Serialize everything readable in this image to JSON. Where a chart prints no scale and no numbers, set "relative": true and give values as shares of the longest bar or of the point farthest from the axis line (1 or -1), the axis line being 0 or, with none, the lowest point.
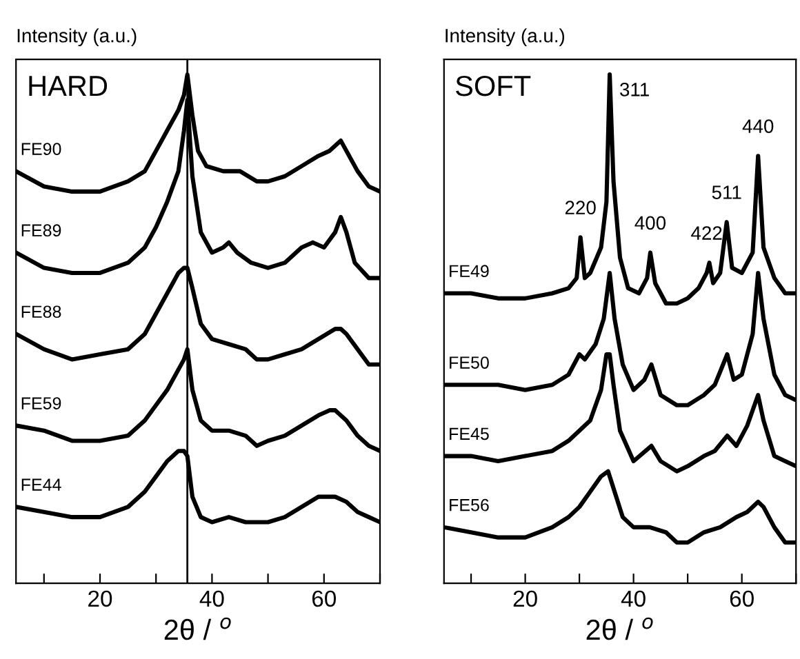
{
  "chart_data": [
    {
      "type": "line",
      "relative": true,
      "ylabel": "Intensity (a.u.)",
      "xlabel": "2θ / $^{o}$",
      "xlim": [
        5,
        70
      ],
      "xticks": [
        {
          "value": 10,
          "label": null
        },
        20,
        {
          "value": 30,
          "label": null
        },
        40,
        {
          "value": 50,
          "label": null
        },
        60,
        {
          "value": 70,
          "label": null
        }
      ],
      "annotations": [
        "HARD"
      ],
      "ref_lines": [
        {
          "axis": "x",
          "value": 35.6,
          "color": "#000000"
        }
      ],
      "legend": false,
      "grid": false,
      "marker": "none",
      "line_style": "solid",
      "series": [
        {
          "name": "FE90",
          "color": "#000000",
          "x": [
            5,
            10,
            15,
            20,
            25,
            28,
            30,
            32,
            34,
            35,
            35.6,
            36.5,
            37.5,
            39,
            42,
            45,
            48,
            50,
            53,
            56,
            59,
            61,
            63,
            64,
            66,
            68,
            70
          ],
          "values": [
            0.81,
            0.78,
            0.77,
            0.77,
            0.79,
            0.81,
            0.85,
            0.89,
            0.93,
            0.96,
            1.0,
            0.92,
            0.85,
            0.82,
            0.81,
            0.81,
            0.79,
            0.79,
            0.8,
            0.82,
            0.84,
            0.85,
            0.87,
            0.85,
            0.81,
            0.78,
            0.77
          ]
        },
        {
          "name": "FE89",
          "color": "#000000",
          "x": [
            5,
            10,
            15,
            20,
            25,
            28,
            30,
            32,
            34,
            35,
            35.6,
            36.5,
            38,
            40,
            42,
            43,
            44.5,
            47,
            50,
            53,
            56,
            58,
            60,
            62,
            63,
            64,
            65.5,
            68,
            70
          ],
          "values": [
            0.65,
            0.62,
            0.61,
            0.61,
            0.63,
            0.66,
            0.7,
            0.75,
            0.81,
            0.89,
            0.95,
            0.8,
            0.69,
            0.65,
            0.66,
            0.67,
            0.65,
            0.63,
            0.62,
            0.63,
            0.66,
            0.67,
            0.66,
            0.69,
            0.72,
            0.69,
            0.63,
            0.6,
            0.6
          ]
        },
        {
          "name": "FE88",
          "color": "#000000",
          "x": [
            5,
            10,
            15,
            20,
            25,
            28,
            30,
            32,
            34,
            35,
            35.6,
            36.5,
            38,
            40,
            43,
            46,
            48,
            50,
            53,
            56,
            59,
            62,
            63,
            64,
            66,
            68,
            70
          ],
          "values": [
            0.49,
            0.46,
            0.44,
            0.45,
            0.46,
            0.49,
            0.53,
            0.57,
            0.61,
            0.62,
            0.62,
            0.58,
            0.51,
            0.48,
            0.47,
            0.46,
            0.44,
            0.44,
            0.45,
            0.46,
            0.48,
            0.5,
            0.5,
            0.49,
            0.46,
            0.43,
            0.43
          ]
        },
        {
          "name": "FE59",
          "color": "#000000",
          "x": [
            5,
            10,
            15,
            20,
            25,
            28,
            30,
            32,
            34,
            35,
            35.6,
            36.5,
            38,
            40,
            43,
            46,
            48,
            50,
            53,
            56,
            59,
            61,
            62,
            64,
            66,
            68,
            70
          ],
          "values": [
            0.31,
            0.3,
            0.28,
            0.28,
            0.29,
            0.32,
            0.35,
            0.38,
            0.42,
            0.44,
            0.46,
            0.38,
            0.32,
            0.3,
            0.3,
            0.29,
            0.27,
            0.28,
            0.29,
            0.31,
            0.33,
            0.34,
            0.34,
            0.32,
            0.29,
            0.27,
            0.26
          ]
        },
        {
          "name": "FE44",
          "color": "#000000",
          "x": [
            5,
            10,
            15,
            20,
            25,
            28,
            30,
            32,
            34,
            35,
            35.6,
            36.5,
            38,
            40,
            43,
            46,
            50,
            53,
            56,
            59,
            62,
            64,
            66,
            68,
            70
          ],
          "values": [
            0.15,
            0.14,
            0.13,
            0.13,
            0.15,
            0.18,
            0.21,
            0.24,
            0.26,
            0.26,
            0.25,
            0.17,
            0.13,
            0.12,
            0.13,
            0.12,
            0.12,
            0.13,
            0.15,
            0.17,
            0.17,
            0.16,
            0.14,
            0.13,
            0.12
          ]
        }
      ]
    },
    {
      "type": "line",
      "relative": true,
      "ylabel": "Intensity (a.u.)",
      "xlabel": "2θ / $^{o}$",
      "xlim": [
        5,
        70
      ],
      "xticks": [
        {
          "value": 10,
          "label": null
        },
        20,
        {
          "value": 30,
          "label": null
        },
        40,
        {
          "value": 50,
          "label": null
        },
        60,
        {
          "value": 70,
          "label": null
        }
      ],
      "annotations": [
        "SOFT",
        {
          "text": "220",
          "x": 30.2,
          "y": 0.68
        },
        {
          "text": "311",
          "x": 35.6,
          "y": 1.0
        },
        {
          "text": "400",
          "x": 43.1,
          "y": 0.65
        },
        {
          "text": "422",
          "x": 53.5,
          "y": 0.63
        },
        {
          "text": "511",
          "x": 57.2,
          "y": 0.71
        },
        {
          "text": "440",
          "x": 63,
          "y": 0.84
        }
      ],
      "legend": false,
      "grid": false,
      "marker": "none",
      "line_style": "solid",
      "series": [
        {
          "name": "FE49",
          "color": "#000000",
          "x": [
            5,
            10,
            15,
            20,
            25,
            28,
            29.5,
            30.2,
            31,
            32,
            34,
            35,
            35.6,
            36.3,
            37.5,
            39,
            41,
            42.5,
            43.1,
            44,
            46,
            48,
            50,
            52,
            53.5,
            54,
            54.7,
            56,
            57.2,
            58.2,
            60,
            62,
            63,
            64,
            66,
            68,
            70
          ],
          "values": [
            0.57,
            0.57,
            0.56,
            0.56,
            0.57,
            0.58,
            0.6,
            0.68,
            0.6,
            0.61,
            0.66,
            0.75,
            1.0,
            0.79,
            0.64,
            0.58,
            0.57,
            0.6,
            0.65,
            0.59,
            0.55,
            0.55,
            0.56,
            0.58,
            0.61,
            0.63,
            0.59,
            0.61,
            0.71,
            0.62,
            0.61,
            0.65,
            0.84,
            0.66,
            0.6,
            0.57,
            0.57
          ]
        },
        {
          "name": "FE50",
          "color": "#000000",
          "x": [
            5,
            10,
            15,
            20,
            25,
            28,
            30,
            31,
            33,
            34.5,
            35.6,
            36.5,
            38,
            40,
            42,
            43.3,
            45,
            48,
            50,
            53,
            55,
            57.3,
            58.5,
            60,
            62,
            63,
            64,
            66,
            68,
            70
          ],
          "values": [
            0.39,
            0.39,
            0.39,
            0.38,
            0.39,
            0.41,
            0.45,
            0.44,
            0.47,
            0.52,
            0.61,
            0.52,
            0.43,
            0.38,
            0.4,
            0.43,
            0.37,
            0.35,
            0.35,
            0.37,
            0.39,
            0.45,
            0.4,
            0.41,
            0.49,
            0.61,
            0.52,
            0.41,
            0.37,
            0.36
          ]
        },
        {
          "name": "FE45",
          "color": "#000000",
          "x": [
            5,
            10,
            15,
            20,
            25,
            28,
            30,
            32,
            34,
            35,
            35.6,
            36.3,
            37.5,
            40,
            43.3,
            45,
            48,
            50,
            53,
            55,
            57.3,
            59,
            61,
            63,
            64,
            66,
            68,
            70
          ],
          "values": [
            0.25,
            0.25,
            0.24,
            0.25,
            0.26,
            0.28,
            0.3,
            0.32,
            0.38,
            0.45,
            0.45,
            0.39,
            0.3,
            0.24,
            0.27,
            0.24,
            0.22,
            0.23,
            0.25,
            0.26,
            0.29,
            0.27,
            0.31,
            0.37,
            0.32,
            0.25,
            0.24,
            0.23
          ]
        },
        {
          "name": "FE56",
          "color": "#000000",
          "x": [
            5,
            10,
            15,
            20,
            25,
            28,
            30,
            32,
            34,
            35.3,
            36.5,
            38,
            40,
            43,
            46,
            48,
            50,
            53,
            56,
            59,
            61,
            63,
            64,
            66,
            68,
            70
          ],
          "values": [
            0.11,
            0.1,
            0.09,
            0.09,
            0.11,
            0.13,
            0.15,
            0.18,
            0.21,
            0.22,
            0.18,
            0.13,
            0.11,
            0.11,
            0.1,
            0.08,
            0.08,
            0.1,
            0.11,
            0.13,
            0.14,
            0.16,
            0.15,
            0.11,
            0.08,
            0.08
          ]
        }
      ]
    }
  ]
}
